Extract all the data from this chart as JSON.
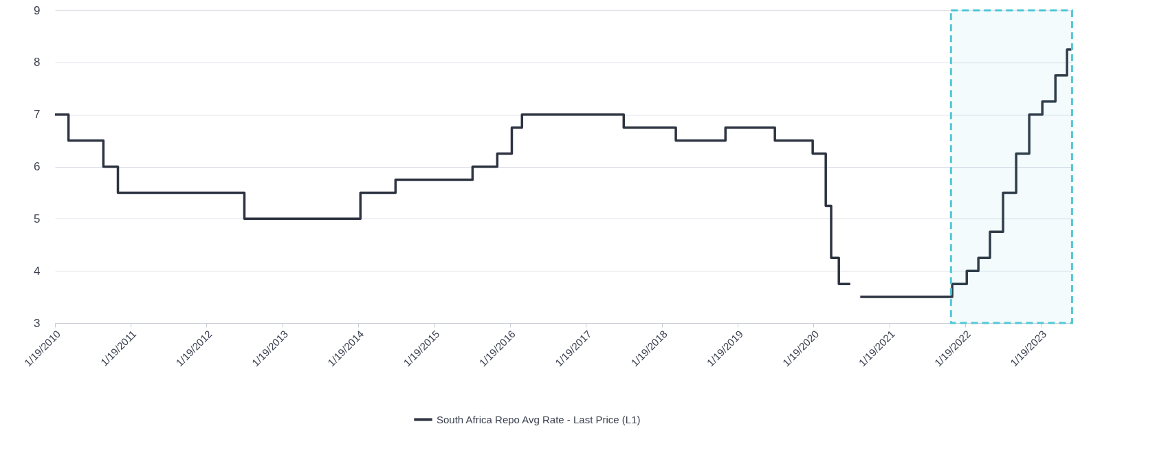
{
  "chart_data": {
    "type": "step",
    "x": [
      "2010-01-19",
      "2010-03-25",
      "2010-09-09",
      "2010-11-18",
      "2012-07-19",
      "2014-01-29",
      "2014-07-17",
      "2015-07-23",
      "2015-11-19",
      "2016-01-28",
      "2016-03-17",
      "2017-07-20",
      "2018-03-28",
      "2018-11-22",
      "2019-07-18",
      "2020-01-16",
      "2020-03-19",
      "2020-04-14",
      "2020-05-21",
      "2020-07-15",
      "2020-08-01",
      "2020-09-01",
      "2021-11-18",
      "2022-01-27",
      "2022-03-24",
      "2022-05-19",
      "2022-07-21",
      "2022-09-22",
      "2022-11-24",
      "2023-01-26",
      "2023-03-30",
      "2023-05-25",
      "2023-06-15"
    ],
    "series": [
      {
        "name": "South Africa Repo Avg Rate - Last Price (L1)",
        "color": "#2d3340",
        "values": [
          7,
          6.5,
          6,
          5.5,
          5,
          5.5,
          5.75,
          6,
          6.25,
          6.75,
          7,
          6.75,
          6.5,
          6.75,
          6.5,
          6.25,
          5.25,
          4.25,
          3.75,
          3.75,
          null,
          3.5,
          3.75,
          4,
          4.25,
          4.75,
          5.5,
          6.25,
          7,
          7.25,
          7.75,
          8.25,
          8.25
        ]
      }
    ],
    "xlim": [
      "2010-01-19",
      "2023-06-20"
    ],
    "xticks": [
      {
        "value": "2010-01-19",
        "label": "1/19/2010"
      },
      {
        "value": "2011-01-19",
        "label": "1/19/2011"
      },
      {
        "value": "2012-01-19",
        "label": "1/19/2012"
      },
      {
        "value": "2013-01-19",
        "label": "1/19/2013"
      },
      {
        "value": "2014-01-19",
        "label": "1/19/2014"
      },
      {
        "value": "2015-01-19",
        "label": "1/19/2015"
      },
      {
        "value": "2016-01-19",
        "label": "1/19/2016"
      },
      {
        "value": "2017-01-19",
        "label": "1/19/2017"
      },
      {
        "value": "2018-01-19",
        "label": "1/19/2018"
      },
      {
        "value": "2019-01-19",
        "label": "1/19/2019"
      },
      {
        "value": "2020-01-19",
        "label": "1/19/2020"
      },
      {
        "value": "2021-01-19",
        "label": "1/19/2021"
      },
      {
        "value": "2022-01-19",
        "label": "1/19/2022"
      },
      {
        "value": "2023-01-19",
        "label": "1/19/2023"
      }
    ],
    "ylim": [
      3,
      9
    ],
    "yticks": [
      3,
      4,
      5,
      6,
      7,
      8,
      9
    ],
    "grid": "y",
    "legend": "bottom",
    "line_style": "solid",
    "bands": [
      {
        "axis": "x",
        "from": "2021-11-12",
        "to": "2023-06-18",
        "color": "#4fc8d6"
      }
    ]
  }
}
